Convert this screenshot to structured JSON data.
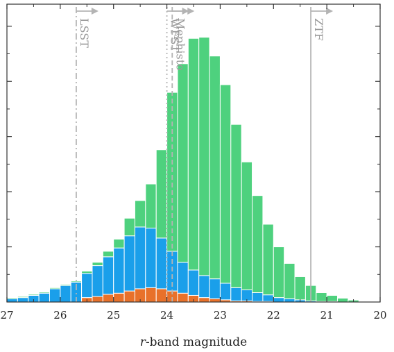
{
  "chart_data": {
    "type": "bar",
    "stacked": true,
    "xlabel_italic": "r",
    "xlabel_rest": "-band magnitude",
    "ylabel": "",
    "x_reversed": true,
    "xlim": [
      27,
      20
    ],
    "x_ticks": [
      "27",
      "26",
      "25",
      "24",
      "23",
      "22",
      "21",
      "20"
    ],
    "bin_width": 0.2,
    "bin_left_edges": [
      26.8,
      26.6,
      26.4,
      26.2,
      26.0,
      25.8,
      25.6,
      25.4,
      25.2,
      25.0,
      24.8,
      24.6,
      24.4,
      24.2,
      24.0,
      23.8,
      23.6,
      23.4,
      23.2,
      23.0,
      22.8,
      22.6,
      22.4,
      22.2,
      22.0,
      21.8,
      21.6,
      21.4,
      21.2,
      21.0,
      20.8,
      20.6,
      20.4
    ],
    "series": [
      {
        "color": "#e8712a",
        "values": [
          0,
          0,
          0,
          0,
          0,
          0,
          0,
          0.4,
          0.5,
          0.7,
          0.8,
          1.0,
          1.2,
          1.3,
          1.2,
          1.0,
          0.8,
          0.6,
          0.4,
          0.3,
          0.2,
          0.1,
          0.1,
          0.05,
          0.05,
          0,
          0,
          0,
          0,
          0,
          0,
          0,
          0
        ]
      },
      {
        "color": "#1a9fea",
        "values": [
          0.3,
          0.4,
          0.6,
          0.8,
          1.2,
          1.5,
          1.8,
          2.2,
          2.8,
          3.4,
          4.1,
          5.0,
          5.6,
          5.4,
          4.6,
          3.6,
          2.8,
          2.3,
          2.0,
          1.8,
          1.5,
          1.2,
          1.0,
          0.8,
          0.6,
          0.4,
          0.3,
          0.2,
          0.1,
          0.05,
          0.05,
          0,
          0
        ]
      },
      {
        "color": "#4ed17e",
        "values": [
          0.1,
          0.1,
          0.1,
          0.1,
          0.1,
          0.1,
          0.1,
          0.2,
          0.3,
          0.5,
          0.8,
          1.6,
          2.4,
          4.0,
          8.0,
          14.4,
          18.0,
          21.0,
          21.6,
          20.2,
          18.0,
          14.8,
          11.6,
          8.8,
          6.4,
          4.6,
          3.2,
          2.1,
          1.4,
          0.8,
          0.55,
          0.35,
          0.18
        ]
      }
    ],
    "ylim": [
      0,
      27
    ],
    "limits": [
      {
        "label": "LSST",
        "mag": 25.7,
        "style": "dashdot"
      },
      {
        "label": "WFST",
        "mag": 24.0,
        "style": "dotted"
      },
      {
        "label": "Mephisto",
        "mag": 23.9,
        "style": "dashed"
      },
      {
        "label": "ZTF",
        "mag": 21.3,
        "style": "solid"
      }
    ],
    "legend": "none",
    "grid": false
  }
}
